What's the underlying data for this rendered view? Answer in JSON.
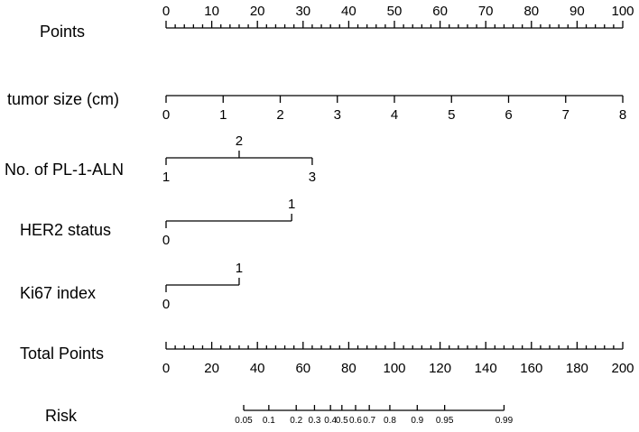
{
  "chart_data": {
    "type": "nomogram",
    "rows": [
      {
        "id": "points",
        "label": "Points",
        "scale": "points",
        "min": 0,
        "max": 100,
        "major_ticks": [
          0,
          10,
          20,
          30,
          40,
          50,
          60,
          70,
          80,
          90,
          100
        ],
        "tick_labels": [
          "0",
          "10",
          "20",
          "30",
          "40",
          "50",
          "60",
          "70",
          "80",
          "90",
          "100"
        ],
        "minor_step": 2,
        "labels_position": "above"
      },
      {
        "id": "tumor-size",
        "label": "tumor size (cm)",
        "scale": "variable",
        "points_min": 0,
        "points_max": 100,
        "values": [
          0,
          1,
          2,
          3,
          4,
          5,
          6,
          7,
          8
        ],
        "tick_labels": [
          "0",
          "1",
          "2",
          "3",
          "4",
          "5",
          "6",
          "7",
          "8"
        ],
        "labels_position": "below"
      },
      {
        "id": "pl-1-aln",
        "label": "No. of PL-1-ALN",
        "scale": "variable",
        "points_min": 0,
        "points_max": 32,
        "values": [
          1,
          2,
          3
        ],
        "tick_labels": [
          "1",
          "2",
          "3"
        ],
        "label_sides": [
          "below",
          "above",
          "below"
        ]
      },
      {
        "id": "her2",
        "label": "HER2 status",
        "scale": "variable",
        "points_min": 0,
        "points_max": 27.5,
        "values": [
          0,
          1
        ],
        "tick_labels": [
          "0",
          "1"
        ],
        "label_sides": [
          "below",
          "above"
        ]
      },
      {
        "id": "ki67",
        "label": "Ki67 index",
        "scale": "variable",
        "points_min": 0,
        "points_max": 16,
        "values": [
          0,
          1
        ],
        "tick_labels": [
          "0",
          "1"
        ],
        "label_sides": [
          "below",
          "above"
        ]
      },
      {
        "id": "total-points",
        "label": "Total Points",
        "scale": "total",
        "min": 0,
        "max": 200,
        "major_ticks": [
          0,
          20,
          40,
          60,
          80,
          100,
          120,
          140,
          160,
          180,
          200
        ],
        "tick_labels": [
          "0",
          "20",
          "40",
          "60",
          "80",
          "100",
          "120",
          "140",
          "160",
          "180",
          "200"
        ],
        "minor_step": 4,
        "labels_position": "below"
      },
      {
        "id": "risk",
        "label": "Risk",
        "scale": "risk",
        "values": [
          0.05,
          0.1,
          0.2,
          0.3,
          0.4,
          0.5,
          0.6,
          0.7,
          0.8,
          0.9,
          0.95,
          0.99
        ],
        "tick_labels": [
          "0.05",
          "0.1",
          "0.2",
          "0.3",
          "0.4",
          "0.5",
          "0.6",
          "0.7",
          "0.8",
          "0.9",
          "0.95",
          "0.99"
        ],
        "total_points_at_values": [
          34,
          45,
          57,
          65,
          72,
          77,
          83,
          89,
          98,
          110,
          122,
          148
        ],
        "labels_position": "below"
      }
    ]
  }
}
